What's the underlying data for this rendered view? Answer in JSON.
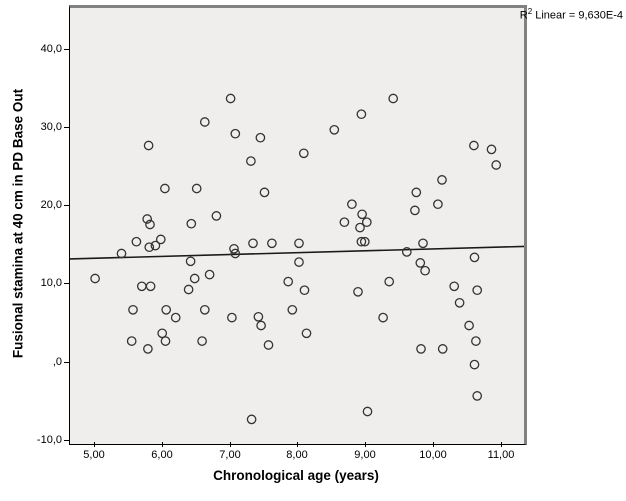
{
  "annotation": {
    "prefix": "R",
    "sup": "2",
    "rest": " Linear = 9,630E-4"
  },
  "colors": {
    "plot_background": "#efeeec",
    "frame_gray": "#818181",
    "axis_black": "#000000",
    "point_stroke": "#333333",
    "line_color": "#1a1a1a"
  },
  "chart_data": {
    "type": "scatter",
    "title": "",
    "xlabel": "Chronological age (years)",
    "ylabel": "Fusional stamina at 40 cm in PD Base Out",
    "xlim": [
      4.63,
      11.33
    ],
    "ylim": [
      -10.15,
      45.57
    ],
    "grid": false,
    "x_ticks": [
      5,
      6,
      7,
      8,
      9,
      10,
      11
    ],
    "x_tick_labels": [
      "5,00",
      "6,00",
      "7,00",
      "8,00",
      "9,00",
      "10,00",
      "11,00"
    ],
    "y_ticks": [
      40,
      30,
      20,
      10,
      0,
      -10
    ],
    "y_tick_labels": [
      "40,0",
      "30,0",
      "20,0",
      "10,0",
      ",0",
      "-10,0"
    ],
    "regression_line": {
      "x1": 4.63,
      "y1": 13.5,
      "x2": 11.33,
      "y2": 15.1,
      "r2_label": "R2 Linear = 9,630E-4"
    },
    "points": [
      [
        5.0,
        11.0
      ],
      [
        5.39,
        14.2
      ],
      [
        5.54,
        3.0
      ],
      [
        5.56,
        7.0
      ],
      [
        5.61,
        15.7
      ],
      [
        5.69,
        10.0
      ],
      [
        5.77,
        18.6
      ],
      [
        5.78,
        2.0
      ],
      [
        5.79,
        28.0
      ],
      [
        5.8,
        15.0
      ],
      [
        5.81,
        17.9
      ],
      [
        5.82,
        10.0
      ],
      [
        5.89,
        15.2
      ],
      [
        5.97,
        16.0
      ],
      [
        5.99,
        4.0
      ],
      [
        6.03,
        22.5
      ],
      [
        6.04,
        3.0
      ],
      [
        6.05,
        7.0
      ],
      [
        6.19,
        6.0
      ],
      [
        6.38,
        9.6
      ],
      [
        6.41,
        13.2
      ],
      [
        6.42,
        18.0
      ],
      [
        6.47,
        11.0
      ],
      [
        6.5,
        22.5
      ],
      [
        6.58,
        3.0
      ],
      [
        6.62,
        31.0
      ],
      [
        6.62,
        7.0
      ],
      [
        6.69,
        11.5
      ],
      [
        6.79,
        19.0
      ],
      [
        7.0,
        34.0
      ],
      [
        7.02,
        6.0
      ],
      [
        7.05,
        14.8
      ],
      [
        7.07,
        29.5
      ],
      [
        7.07,
        14.2
      ],
      [
        7.3,
        26.0
      ],
      [
        7.31,
        -7.0
      ],
      [
        7.33,
        15.5
      ],
      [
        7.41,
        6.1
      ],
      [
        7.44,
        29.0
      ],
      [
        7.45,
        5.0
      ],
      [
        7.5,
        22.0
      ],
      [
        7.56,
        2.5
      ],
      [
        7.61,
        15.5
      ],
      [
        7.85,
        10.6
      ],
      [
        7.91,
        7.0
      ],
      [
        8.01,
        15.5
      ],
      [
        8.01,
        13.1
      ],
      [
        8.08,
        27.0
      ],
      [
        8.09,
        9.5
      ],
      [
        8.12,
        4.0
      ],
      [
        8.53,
        30.0
      ],
      [
        8.68,
        18.2
      ],
      [
        8.79,
        20.5
      ],
      [
        8.88,
        9.3
      ],
      [
        8.91,
        17.5
      ],
      [
        8.93,
        32.0
      ],
      [
        8.93,
        15.7
      ],
      [
        8.94,
        19.2
      ],
      [
        8.98,
        15.7
      ],
      [
        9.01,
        18.2
      ],
      [
        9.02,
        -6.0
      ],
      [
        9.25,
        6.0
      ],
      [
        9.34,
        10.6
      ],
      [
        9.4,
        34.0
      ],
      [
        9.6,
        14.4
      ],
      [
        9.72,
        19.7
      ],
      [
        9.74,
        22.0
      ],
      [
        9.8,
        13.0
      ],
      [
        9.81,
        2.0
      ],
      [
        9.84,
        15.5
      ],
      [
        9.87,
        12.0
      ],
      [
        10.06,
        20.5
      ],
      [
        10.12,
        23.6
      ],
      [
        10.13,
        2.0
      ],
      [
        10.3,
        10.0
      ],
      [
        10.38,
        7.9
      ],
      [
        10.52,
        5.0
      ],
      [
        10.59,
        28.0
      ],
      [
        10.6,
        13.7
      ],
      [
        10.6,
        0.0
      ],
      [
        10.62,
        3.0
      ],
      [
        10.64,
        9.5
      ],
      [
        10.64,
        -4.0
      ],
      [
        10.85,
        27.5
      ],
      [
        10.92,
        25.5
      ]
    ]
  }
}
